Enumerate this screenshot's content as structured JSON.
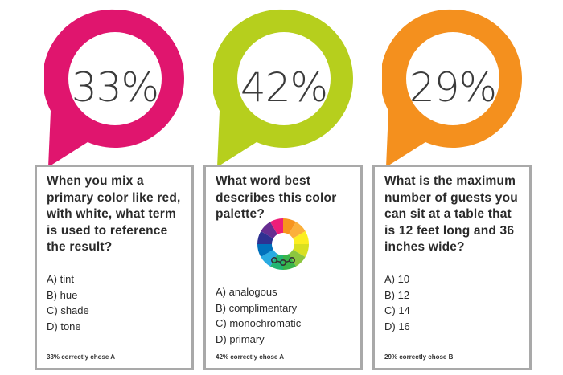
{
  "colors": {
    "card1": "#e0156e",
    "card2": "#b6cf1d",
    "card3": "#f4901e",
    "border": "#a9a9a9"
  },
  "cards": [
    {
      "percent": "33%",
      "question": "When you mix a primary color like red, with white, what term is used to reference the result?",
      "answers": [
        "A) tint",
        "B) hue",
        "C) shade",
        "D) tone"
      ],
      "note": "33% correctly chose A"
    },
    {
      "percent": "42%",
      "question": "What word best describes this color palette?",
      "image": "color-wheel",
      "answers": [
        "A) analogous",
        "B) complimentary",
        "C) monochromatic",
        "D) primary"
      ],
      "note": "42% correctly chose A"
    },
    {
      "percent": "29%",
      "question": "What is the maximum number of guests you can sit at a table that is 12 feet long and 36 inches wide?",
      "answers": [
        "A) 10",
        "B) 12",
        "C) 14",
        "D) 16"
      ],
      "note": "29% correctly chose B"
    }
  ]
}
